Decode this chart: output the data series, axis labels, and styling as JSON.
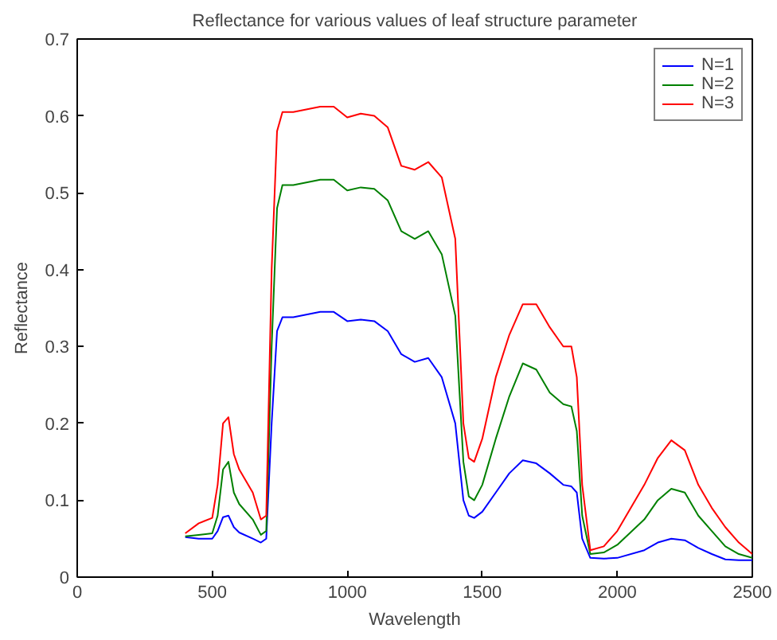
{
  "chart_data": {
    "type": "line",
    "title": "Reflectance for various values of leaf structure parameter",
    "xlabel": "Wavelength",
    "ylabel": "Reflectance",
    "x": [
      400,
      450,
      500,
      520,
      540,
      560,
      580,
      600,
      650,
      680,
      700,
      720,
      740,
      760,
      800,
      900,
      950,
      1000,
      1050,
      1100,
      1150,
      1200,
      1250,
      1300,
      1350,
      1400,
      1430,
      1450,
      1470,
      1500,
      1550,
      1600,
      1650,
      1700,
      1750,
      1800,
      1830,
      1850,
      1870,
      1900,
      1950,
      2000,
      2100,
      2150,
      2200,
      2250,
      2300,
      2350,
      2400,
      2450,
      2500
    ],
    "series": [
      {
        "name": "N=1",
        "color": "#0000ff",
        "values": [
          0.052,
          0.05,
          0.05,
          0.06,
          0.078,
          0.08,
          0.065,
          0.058,
          0.05,
          0.045,
          0.05,
          0.2,
          0.32,
          0.338,
          0.338,
          0.345,
          0.345,
          0.333,
          0.335,
          0.333,
          0.32,
          0.29,
          0.28,
          0.285,
          0.26,
          0.2,
          0.1,
          0.08,
          0.077,
          0.085,
          0.11,
          0.135,
          0.152,
          0.148,
          0.135,
          0.12,
          0.118,
          0.11,
          0.05,
          0.025,
          0.024,
          0.025,
          0.035,
          0.045,
          0.05,
          0.048,
          0.038,
          0.03,
          0.023,
          0.022,
          0.022
        ]
      },
      {
        "name": "N=2",
        "color": "#008000",
        "values": [
          0.053,
          0.055,
          0.057,
          0.08,
          0.14,
          0.15,
          0.11,
          0.095,
          0.075,
          0.055,
          0.06,
          0.3,
          0.48,
          0.51,
          0.51,
          0.517,
          0.517,
          0.503,
          0.507,
          0.505,
          0.49,
          0.45,
          0.44,
          0.45,
          0.42,
          0.34,
          0.15,
          0.105,
          0.1,
          0.12,
          0.18,
          0.235,
          0.278,
          0.27,
          0.24,
          0.225,
          0.222,
          0.19,
          0.08,
          0.03,
          0.032,
          0.042,
          0.075,
          0.1,
          0.115,
          0.11,
          0.08,
          0.06,
          0.04,
          0.03,
          0.025
        ]
      },
      {
        "name": "N=3",
        "color": "#ff0000",
        "values": [
          0.057,
          0.07,
          0.077,
          0.12,
          0.2,
          0.208,
          0.16,
          0.14,
          0.11,
          0.075,
          0.08,
          0.4,
          0.58,
          0.605,
          0.605,
          0.612,
          0.612,
          0.598,
          0.603,
          0.6,
          0.585,
          0.535,
          0.53,
          0.54,
          0.52,
          0.44,
          0.2,
          0.155,
          0.15,
          0.18,
          0.26,
          0.315,
          0.355,
          0.355,
          0.325,
          0.3,
          0.3,
          0.26,
          0.12,
          0.035,
          0.04,
          0.06,
          0.12,
          0.155,
          0.178,
          0.165,
          0.12,
          0.09,
          0.065,
          0.045,
          0.03
        ]
      }
    ],
    "xlim": [
      0,
      2500
    ],
    "ylim": [
      0,
      0.7
    ],
    "xticks": [
      0,
      500,
      1000,
      1500,
      2000,
      2500
    ],
    "yticks": [
      0,
      0.1,
      0.2,
      0.3,
      0.4,
      0.5,
      0.6,
      0.7
    ],
    "grid": false,
    "legend": "top right",
    "line_style": "solid",
    "marker": "none"
  }
}
